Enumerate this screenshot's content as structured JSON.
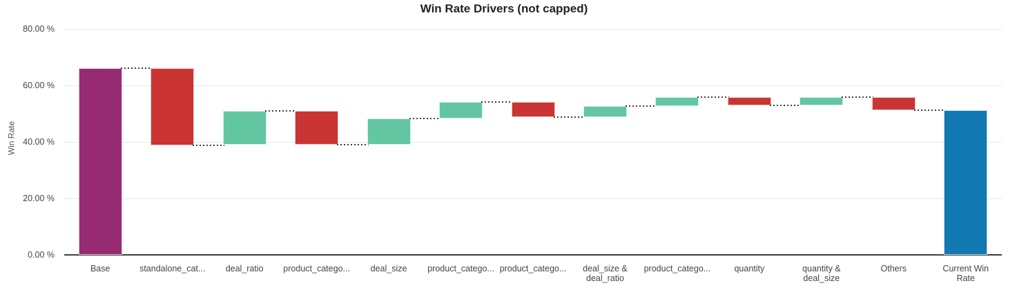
{
  "chart_data": {
    "type": "waterfall",
    "title": "Win Rate Drivers (not capped)",
    "ylabel": "Win Rate",
    "ylim": [
      0,
      80
    ],
    "grid": true,
    "ytick_values": [
      0,
      20,
      40,
      60,
      80
    ],
    "ytick_labels": [
      "0.00 %",
      "20.00 %",
      "40.00 %",
      "60.00 %",
      "80.00 %"
    ],
    "categories": [
      "Base",
      "standalone_cat...",
      "deal_ratio",
      "product_catego...",
      "deal_size",
      "product_catego...",
      "product_catego...",
      "deal_size &\ndeal_ratio",
      "product_catego...",
      "quantity",
      "quantity &\ndeal_size",
      "Others",
      "Current Win\nRate"
    ],
    "bars": [
      {
        "label": "Base",
        "start": 0,
        "end": 66.2,
        "kind": "base"
      },
      {
        "label": "standalone_cat...",
        "start": 66.2,
        "end": 38.9,
        "kind": "decrease"
      },
      {
        "label": "deal_ratio",
        "start": 38.9,
        "end": 50.9,
        "kind": "increase"
      },
      {
        "label": "product_catego...",
        "start": 50.9,
        "end": 39.0,
        "kind": "decrease"
      },
      {
        "label": "deal_size",
        "start": 39.0,
        "end": 48.4,
        "kind": "increase"
      },
      {
        "label": "product_catego...",
        "start": 48.4,
        "end": 54.1,
        "kind": "increase"
      },
      {
        "label": "product_catego...",
        "start": 54.1,
        "end": 48.8,
        "kind": "decrease"
      },
      {
        "label": "deal_size &\ndeal_ratio",
        "start": 48.8,
        "end": 52.8,
        "kind": "increase"
      },
      {
        "label": "product_catego...",
        "start": 52.8,
        "end": 55.8,
        "kind": "increase"
      },
      {
        "label": "quantity",
        "start": 55.8,
        "end": 53.0,
        "kind": "decrease"
      },
      {
        "label": "quantity &\ndeal_size",
        "start": 53.0,
        "end": 55.8,
        "kind": "increase"
      },
      {
        "label": "Others",
        "start": 55.8,
        "end": 51.2,
        "kind": "decrease"
      },
      {
        "label": "Current Win\nRate",
        "start": 0,
        "end": 51.2,
        "kind": "total"
      }
    ],
    "colors": {
      "base": "#962b73",
      "increase": "#62c6a2",
      "decrease": "#ca3433",
      "total": "#1278b1",
      "connector": "#3c3c3c",
      "gridline": "#e8e8e8",
      "axisline": "#3d3d3d"
    }
  }
}
